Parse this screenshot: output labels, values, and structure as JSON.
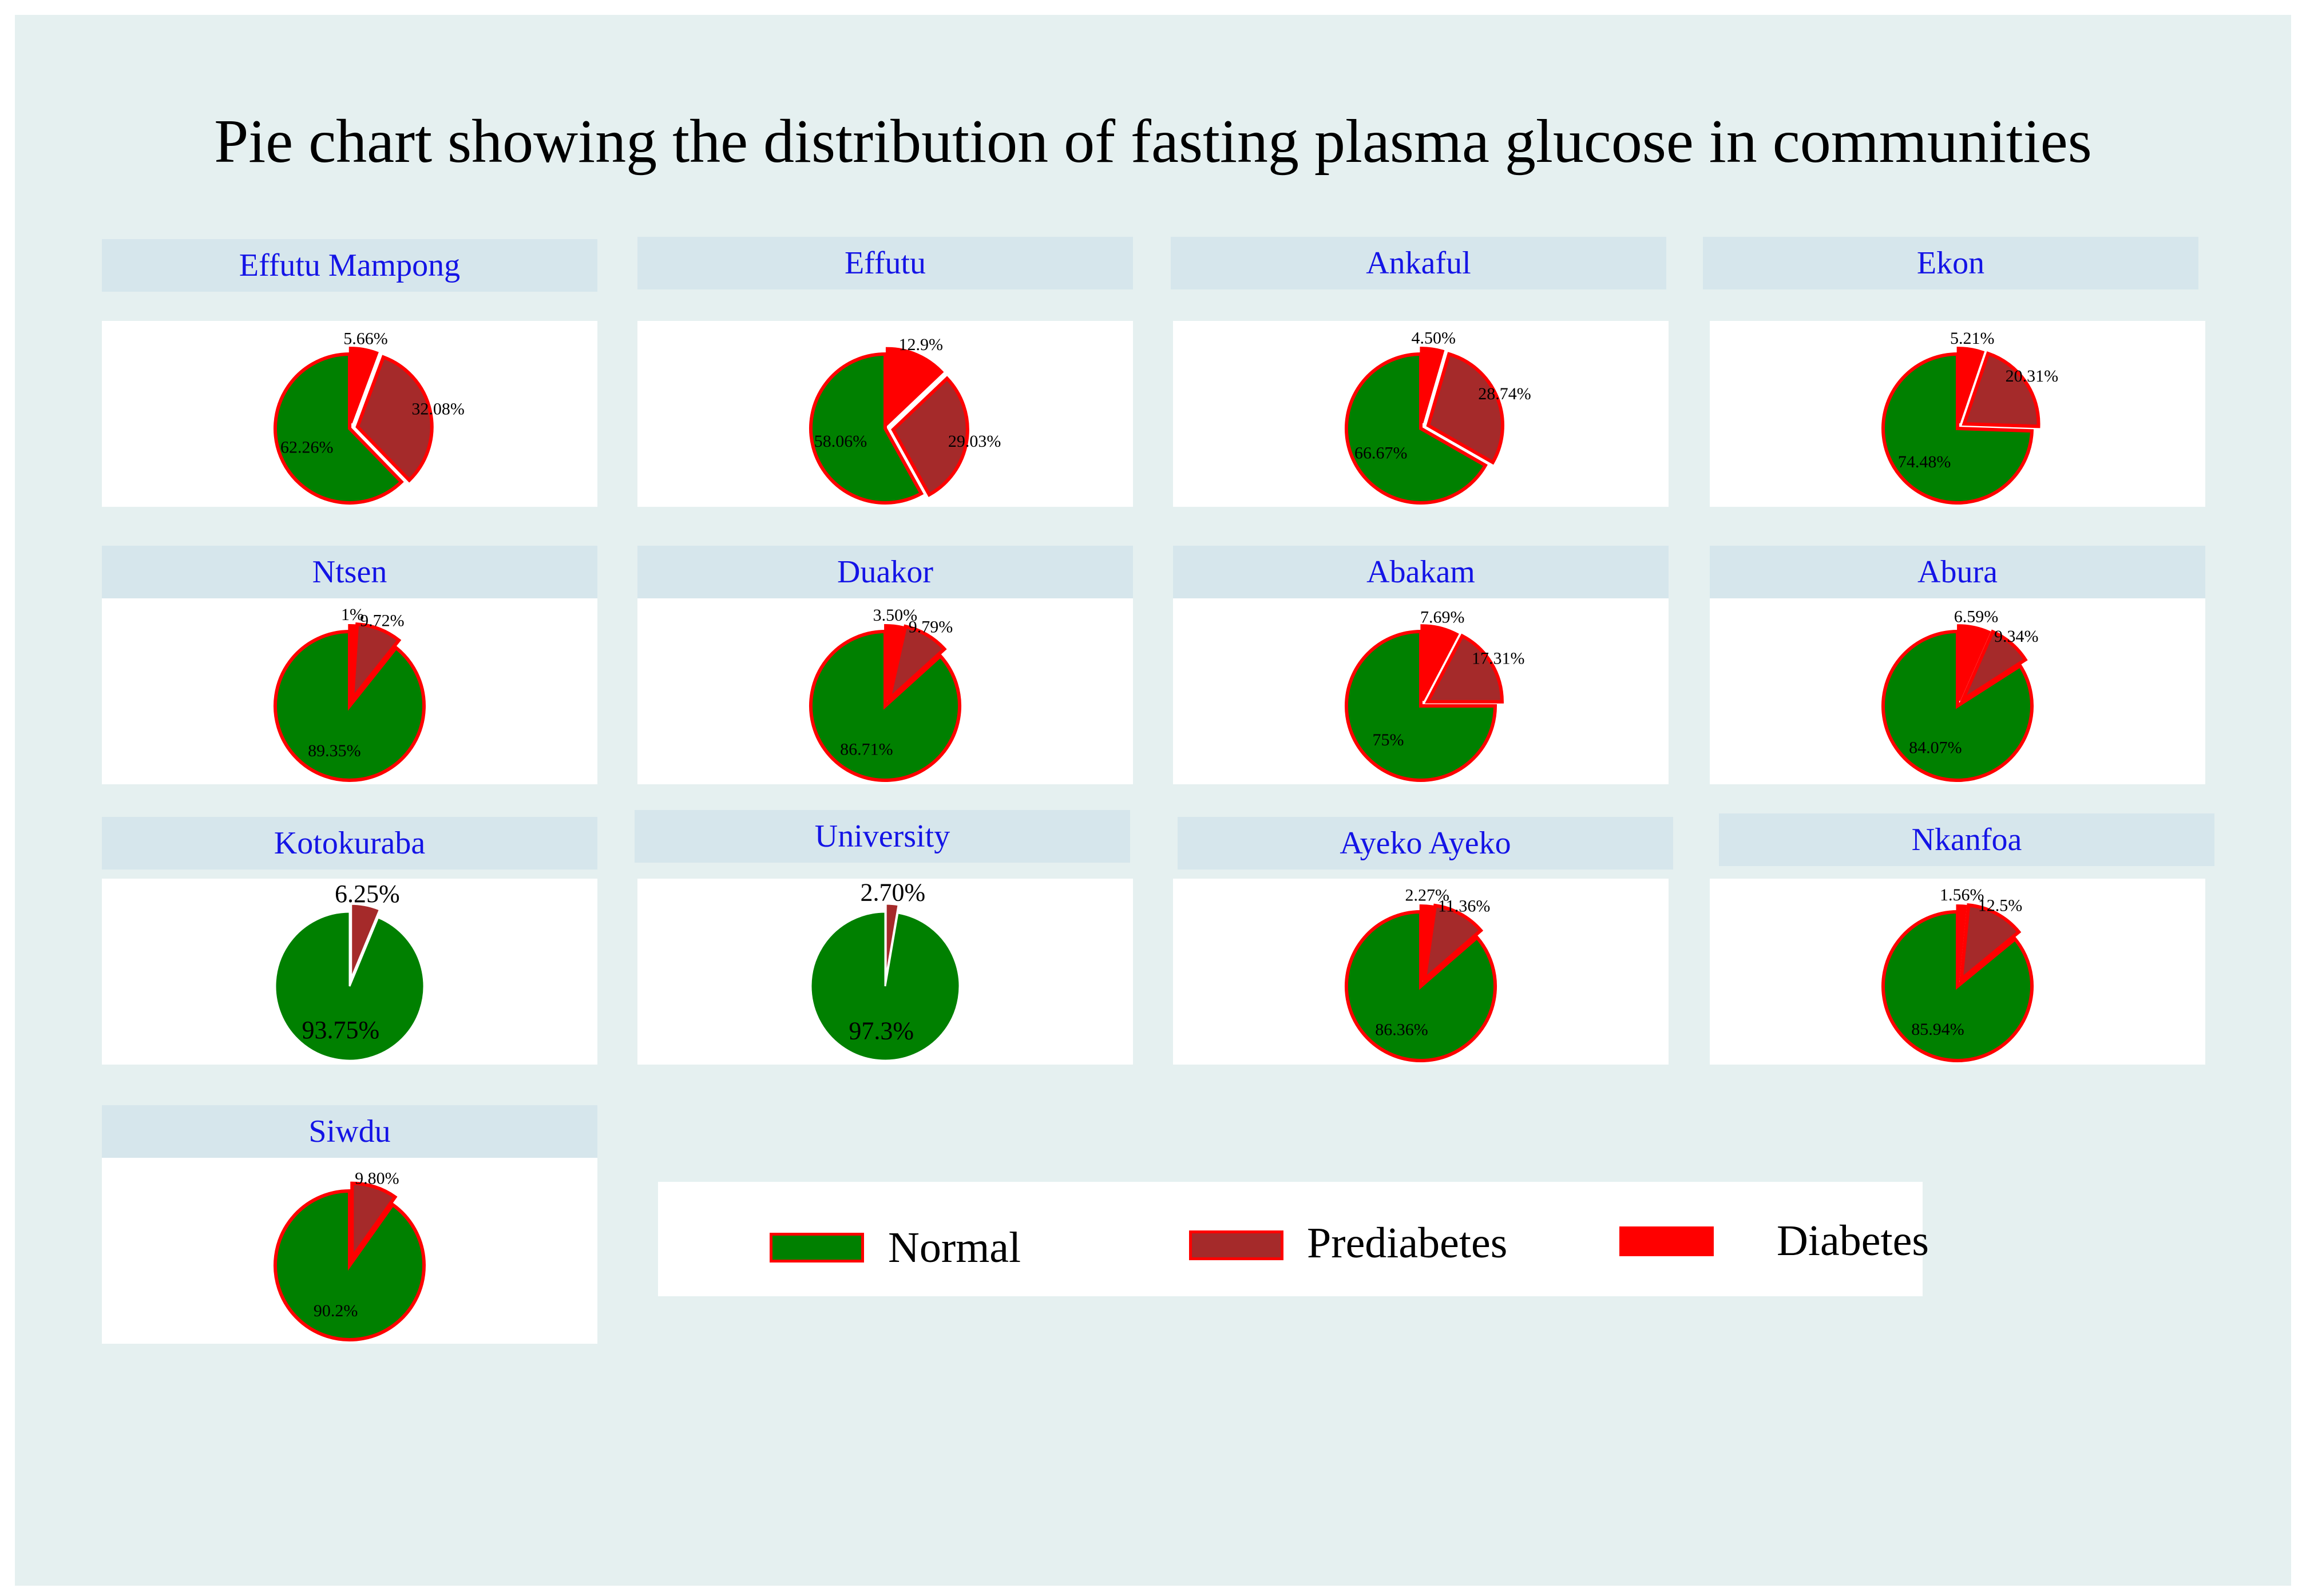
{
  "title": "Pie chart showing the distribution of fasting plasma glucose in communities",
  "colors": {
    "normal": "#008000",
    "prediabetes": "#a52a2a",
    "diabetes": "#ff0000",
    "outline": "#ff0000",
    "header_bg": "#d6e6ec",
    "panel_title": "#1414e6",
    "background": "#e5f0f0"
  },
  "legend": {
    "items": [
      {
        "label": "Normal",
        "color": "#008000"
      },
      {
        "label": "Prediabetes",
        "color": "#a52a2a"
      },
      {
        "label": "Diabetes",
        "color": "#ff0000"
      }
    ]
  },
  "chart_data": [
    {
      "type": "pie",
      "title": "Effutu Mampong",
      "categories": [
        "Normal",
        "Prediabetes",
        "Diabetes"
      ],
      "values": [
        62.26,
        32.08,
        5.66
      ],
      "labels": [
        "62.26%",
        "32.08%",
        "5.66%"
      ]
    },
    {
      "type": "pie",
      "title": "Effutu",
      "categories": [
        "Normal",
        "Prediabetes",
        "Diabetes"
      ],
      "values": [
        58.06,
        29.03,
        12.9
      ],
      "labels": [
        "58.06%",
        "29.03%",
        "12.9%"
      ]
    },
    {
      "type": "pie",
      "title": "Ankaful",
      "categories": [
        "Normal",
        "Prediabetes",
        "Diabetes"
      ],
      "values": [
        66.67,
        28.74,
        4.5
      ],
      "labels": [
        "66.67%",
        "28.74%",
        "4.50%"
      ]
    },
    {
      "type": "pie",
      "title": "Ekon",
      "categories": [
        "Normal",
        "Prediabetes",
        "Diabetes"
      ],
      "values": [
        74.48,
        20.31,
        5.21
      ],
      "labels": [
        "74.48%",
        "20.31%",
        "5.21%"
      ]
    },
    {
      "type": "pie",
      "title": "Ntsen",
      "categories": [
        "Normal",
        "Prediabetes",
        "Diabetes"
      ],
      "values": [
        89.35,
        9.72,
        1
      ],
      "labels": [
        "89.35%",
        "9.72%",
        "1%"
      ]
    },
    {
      "type": "pie",
      "title": "Duakor",
      "categories": [
        "Normal",
        "Prediabetes",
        "Diabetes"
      ],
      "values": [
        86.71,
        9.79,
        3.5
      ],
      "labels": [
        "86.71%",
        "9.79%",
        "3.50%"
      ]
    },
    {
      "type": "pie",
      "title": "Abakam",
      "categories": [
        "Normal",
        "Prediabetes",
        "Diabetes"
      ],
      "values": [
        75,
        17.31,
        7.69
      ],
      "labels": [
        "75%",
        "17.31%",
        "7.69%"
      ]
    },
    {
      "type": "pie",
      "title": "Abura",
      "categories": [
        "Normal",
        "Prediabetes",
        "Diabetes"
      ],
      "values": [
        84.07,
        9.34,
        6.59
      ],
      "labels": [
        "84.07%",
        "9.34%",
        "6.59%"
      ]
    },
    {
      "type": "pie",
      "title": "Kotokuraba",
      "categories": [
        "Normal",
        "Prediabetes"
      ],
      "values": [
        93.75,
        6.25
      ],
      "labels": [
        "93.75%",
        "6.25%"
      ]
    },
    {
      "type": "pie",
      "title": "University",
      "categories": [
        "Normal",
        "Prediabetes"
      ],
      "values": [
        97.3,
        2.7
      ],
      "labels": [
        "97.3%",
        "2.70%"
      ]
    },
    {
      "type": "pie",
      "title": "Ayeko Ayeko",
      "categories": [
        "Normal",
        "Prediabetes",
        "Diabetes"
      ],
      "values": [
        86.36,
        11.36,
        2.27
      ],
      "labels": [
        "86.36%",
        "11.36%",
        "2.27%"
      ]
    },
    {
      "type": "pie",
      "title": "Nkanfoa",
      "categories": [
        "Normal",
        "Prediabetes",
        "Diabetes"
      ],
      "values": [
        85.94,
        12.5,
        1.56
      ],
      "labels": [
        "85.94%",
        "12.5%",
        "1.56%"
      ]
    },
    {
      "type": "pie",
      "title": "Siwdu",
      "categories": [
        "Normal",
        "Prediabetes"
      ],
      "values": [
        90.2,
        9.8
      ],
      "labels": [
        "90.2%",
        "9.80%"
      ]
    }
  ]
}
